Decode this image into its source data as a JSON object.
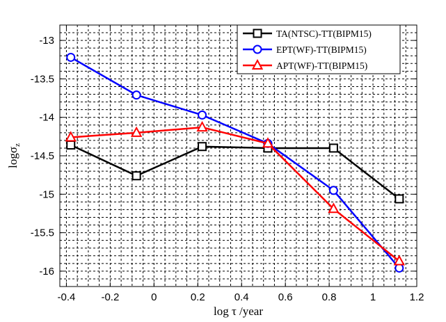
{
  "chart_data": {
    "type": "line",
    "xlabel": "log τ /year",
    "ylabel": "logσ",
    "ylabel_sub": "z",
    "xlim": [
      -0.43,
      1.2
    ],
    "ylim": [
      -16.2,
      -12.8
    ],
    "x_ticks": [
      -0.4,
      -0.2,
      0,
      0.2,
      0.4,
      0.6,
      0.8,
      1,
      1.2
    ],
    "x_tick_labels": [
      "-0.4",
      "-0.2",
      "0",
      "0.2",
      "0.4",
      "0.6",
      "0.8",
      "1",
      "1.2"
    ],
    "y_ticks": [
      -16,
      -15.5,
      -15,
      -14.5,
      -14,
      -13.5,
      -13
    ],
    "y_tick_labels": [
      "-16",
      "-15.5",
      "-15",
      "-14.5",
      "-14",
      "-13.5",
      "-13"
    ],
    "grid": true,
    "legend_position": "top-right",
    "x": [
      -0.38,
      -0.08,
      0.22,
      0.52,
      0.82,
      1.12
    ],
    "series": [
      {
        "name": "TA(NTSC)-TT(BIPM15)",
        "color": "#000000",
        "marker": "square",
        "values": [
          -14.36,
          -14.76,
          -14.38,
          -14.4,
          -14.4,
          -15.06
        ]
      },
      {
        "name": "EPT(WF)-TT(BIPM15)",
        "color": "#0000ff",
        "marker": "circle",
        "values": [
          -13.22,
          -13.71,
          -13.97,
          -14.34,
          -14.95,
          -15.96
        ]
      },
      {
        "name": "APT(WF)-TT(BIPM15)",
        "color": "#ff0000",
        "marker": "triangle",
        "values": [
          -14.26,
          -14.2,
          -14.13,
          -14.34,
          -15.19,
          -15.87
        ]
      }
    ]
  }
}
